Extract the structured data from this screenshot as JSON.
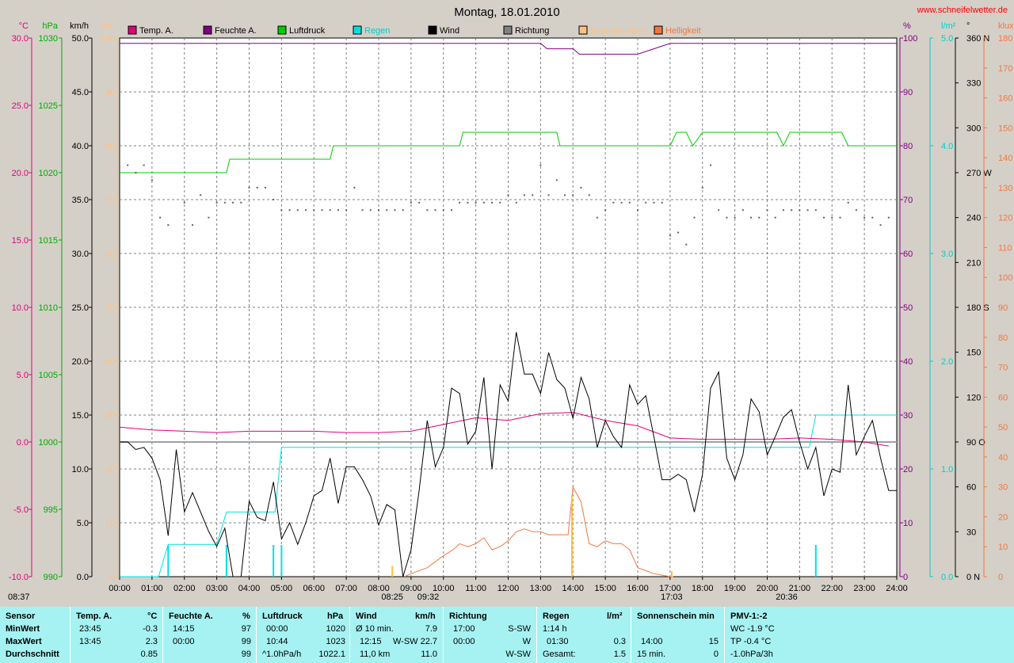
{
  "chart_data": {
    "type": "line",
    "title": "Montag, 18.01.2010",
    "watermark": "www.schneifelwetter.de",
    "legend": [
      {
        "name": "Temp. A.",
        "color": "#e0007a"
      },
      {
        "name": "Feuchte A.",
        "color": "#800080"
      },
      {
        "name": "Luftdruck",
        "color": "#00cc00"
      },
      {
        "name": "Regen",
        "color": "#00e0e0"
      },
      {
        "name": "Wind",
        "color": "#000000"
      },
      {
        "name": "Richtung",
        "color": "#808080"
      },
      {
        "name": "Sonnenschein",
        "color": "#ffc080"
      },
      {
        "name": "Helligkeit",
        "color": "#f07840"
      }
    ],
    "axes_left": [
      {
        "unit": "°C",
        "color": "#e0007a",
        "ticks": [
          "30.0",
          "25.0",
          "20.0",
          "15.0",
          "10.0",
          "5.0",
          "0.0",
          "-5.0",
          "-10.0"
        ]
      },
      {
        "unit": "hPa",
        "color": "#00aa00",
        "ticks": [
          "1030",
          "1025",
          "1020",
          "1015",
          "1010",
          "1005",
          "1000",
          "995",
          "990"
        ]
      },
      {
        "unit": "km/h",
        "color": "#000000",
        "ticks": [
          "50.0",
          "45.0",
          "40.0",
          "35.0",
          "30.0",
          "25.0",
          "20.0",
          "15.0",
          "10.0",
          "5.0",
          "0.0"
        ]
      },
      {
        "unit": "min",
        "color": "#ffc080",
        "ticks": [
          "100",
          "90",
          "80",
          "70",
          "60",
          "50",
          "40",
          "30",
          "20",
          "10",
          "0"
        ]
      }
    ],
    "axes_right": [
      {
        "unit": "%",
        "color": "#800080",
        "ticks": [
          "100",
          "90",
          "80",
          "70",
          "60",
          "50",
          "40",
          "30",
          "20",
          "10",
          "0"
        ]
      },
      {
        "unit": "l/m²",
        "color": "#00cccc",
        "ticks": [
          "5.0",
          "4.0",
          "3.0",
          "2.0",
          "1.0",
          "0.0"
        ]
      },
      {
        "unit": "°",
        "color": "#000000",
        "ticks": [
          "360 N",
          "330",
          "300",
          "270 W",
          "240",
          "210",
          "180 S",
          "150",
          "120",
          "90 O",
          "60",
          "30",
          "0 N"
        ]
      },
      {
        "unit": "klux",
        "color": "#f07840",
        "ticks": [
          "180",
          "170",
          "160",
          "150",
          "140",
          "130",
          "120",
          "110",
          "100",
          "90",
          "80",
          "70",
          "60",
          "50",
          "40",
          "30",
          "20",
          "10",
          "0"
        ]
      }
    ],
    "x_ticks": [
      "00:00",
      "01:00",
      "02:00",
      "03:00",
      "04:00",
      "05:00",
      "06:00",
      "07:00",
      "08:00",
      "09:00",
      "10:00",
      "11:00",
      "12:00",
      "13:00",
      "14:00",
      "15:00",
      "16:00",
      "17:00",
      "18:00",
      "19:00",
      "20:00",
      "21:00",
      "22:00",
      "23:00",
      "24:00"
    ],
    "sun_labels": [
      {
        "label": "08:25",
        "t": 8.42
      },
      {
        "label": "09:32",
        "t": 9.53
      },
      {
        "label": "17:03",
        "t": 17.05
      },
      {
        "label": "20:36",
        "t": 20.6
      },
      {
        "label": "08:37",
        "t": 0
      }
    ],
    "series": [
      {
        "name": "Temp. A.",
        "axis": "°C",
        "x": [
          0,
          1,
          2,
          3,
          4,
          5,
          6,
          7,
          8,
          9,
          10,
          11,
          12,
          13,
          14,
          15,
          16,
          17,
          18,
          19,
          20,
          21,
          22,
          23,
          23.75
        ],
        "y": [
          1.1,
          0.9,
          0.8,
          0.7,
          0.8,
          0.8,
          0.8,
          0.7,
          0.7,
          0.8,
          1.3,
          1.8,
          1.6,
          2.1,
          2.2,
          1.6,
          1.2,
          0.3,
          0.2,
          0.2,
          0.2,
          0.3,
          0.2,
          0.0,
          -0.3
        ]
      },
      {
        "name": "Feuchte A.",
        "axis": "%",
        "x": [
          0,
          13.0,
          13.2,
          14.0,
          14.2,
          15.5,
          16.0,
          16.5,
          17.0,
          24
        ],
        "y": [
          99,
          99,
          98,
          98,
          97,
          97,
          97,
          98,
          99,
          99
        ]
      },
      {
        "name": "Luftdruck",
        "axis": "hPa",
        "x": [
          0,
          3.3,
          3.4,
          6.5,
          6.6,
          10.5,
          10.6,
          13.5,
          13.6,
          17.0,
          17.2,
          17.5,
          17.7,
          18.0,
          20.3,
          20.5,
          20.7,
          22.3,
          22.5,
          24
        ],
        "y": [
          1020,
          1020,
          1021,
          1021,
          1022,
          1022,
          1023,
          1023,
          1022,
          1022,
          1023,
          1023,
          1022,
          1023,
          1023,
          1022,
          1023,
          1023,
          1022,
          1022
        ]
      },
      {
        "name": "Regen",
        "axis": "l/m²",
        "x": [
          0,
          1.2,
          1.5,
          3.0,
          3.3,
          4.8,
          5.0,
          21.3,
          21.5,
          24
        ],
        "y": [
          0,
          0,
          0.3,
          0.3,
          0.6,
          0.6,
          1.2,
          1.2,
          1.5,
          1.5
        ]
      },
      {
        "name": "Wind",
        "axis": "km/h",
        "x": [
          0,
          0.25,
          0.5,
          0.75,
          1.0,
          1.25,
          1.5,
          1.75,
          2.0,
          2.25,
          2.5,
          2.75,
          3.0,
          3.25,
          3.5,
          3.75,
          4.0,
          4.25,
          4.5,
          4.75,
          5.0,
          5.25,
          5.5,
          5.75,
          6.0,
          6.25,
          6.5,
          6.75,
          7.0,
          7.25,
          7.5,
          7.75,
          8.0,
          8.25,
          8.5,
          8.75,
          9.0,
          9.25,
          9.5,
          9.75,
          10.0,
          10.25,
          10.5,
          10.75,
          11.0,
          11.25,
          11.5,
          11.75,
          12.0,
          12.25,
          12.5,
          12.75,
          13.0,
          13.25,
          13.5,
          13.75,
          14.0,
          14.25,
          14.5,
          14.75,
          15.0,
          15.25,
          15.5,
          15.75,
          16.0,
          16.25,
          16.5,
          16.75,
          17.0,
          17.25,
          17.5,
          17.75,
          18.0,
          18.25,
          18.5,
          18.75,
          19.0,
          19.25,
          19.5,
          19.75,
          20.0,
          20.25,
          20.5,
          20.75,
          21.0,
          21.25,
          21.5,
          21.75,
          22.0,
          22.25,
          22.5,
          22.75,
          23.0,
          23.25,
          23.5,
          23.75,
          24.0
        ],
        "y": [
          12.5,
          12.5,
          11.8,
          12.0,
          11.0,
          9.0,
          3.8,
          11.8,
          6.0,
          7.8,
          6.0,
          4.2,
          2.8,
          4.5,
          0.0,
          0.0,
          7.0,
          5.5,
          5.2,
          8.8,
          3.5,
          5.0,
          3.0,
          5.0,
          7.5,
          8.0,
          11.0,
          6.8,
          10.2,
          10.2,
          9.0,
          7.5,
          4.8,
          6.7,
          6.2,
          0.0,
          2.5,
          8.0,
          14.5,
          10.2,
          12.0,
          17.5,
          17.0,
          12.3,
          13.5,
          18.5,
          10.0,
          17.8,
          16.3,
          22.7,
          18.8,
          18.8,
          17.0,
          20.8,
          18.3,
          17.5,
          14.7,
          18.5,
          16.5,
          12.0,
          14.5,
          13.0,
          12.0,
          17.8,
          16.0,
          16.8,
          13.0,
          9.0,
          9.0,
          9.5,
          9.0,
          6.0,
          9.5,
          17.5,
          19.0,
          11.0,
          9.0,
          11.3,
          16.5,
          15.3,
          11.3,
          13.0,
          14.8,
          15.5,
          12.5,
          10.0,
          12.0,
          7.5,
          10.0,
          9.7,
          17.8,
          11.3,
          13.0,
          14.5,
          11.0,
          8.0,
          8.0
        ]
      },
      {
        "name": "Helligkeit",
        "axis": "klux",
        "x": [
          8.8,
          9.0,
          9.5,
          10.0,
          10.3,
          10.5,
          10.75,
          11.0,
          11.25,
          11.5,
          11.75,
          12.0,
          12.25,
          12.5,
          12.75,
          13.0,
          13.25,
          13.5,
          13.75,
          13.85,
          14.0,
          14.25,
          14.5,
          14.75,
          15.0,
          15.25,
          15.5,
          15.75,
          16.0,
          16.25,
          16.5,
          16.75,
          17.0,
          17.1
        ],
        "y": [
          0,
          1,
          3,
          7,
          9,
          11,
          10,
          11,
          13,
          9,
          10,
          12,
          15,
          16,
          15,
          15,
          14,
          14,
          14,
          14,
          30,
          25,
          11,
          10,
          12,
          11,
          11,
          9,
          3,
          2,
          1,
          0.5,
          0,
          0
        ]
      },
      {
        "name": "Sonnenschein",
        "axis": "min",
        "x": [
          8.42,
          13.97,
          17.05
        ],
        "y": [
          2,
          15,
          1
        ]
      },
      {
        "name": "Richtung",
        "axis": "°",
        "x": [
          0.25,
          0.5,
          0.75,
          1.0,
          1.25,
          1.5,
          2.0,
          2.25,
          2.5,
          2.75,
          3.0,
          3.25,
          3.5,
          3.75,
          4.0,
          4.25,
          4.5,
          4.75,
          5.0,
          5.25,
          5.5,
          5.75,
          6.0,
          6.25,
          6.5,
          6.75,
          7.0,
          7.25,
          7.5,
          7.75,
          8.0,
          8.25,
          8.5,
          8.75,
          9.0,
          9.25,
          9.5,
          9.75,
          10.0,
          10.25,
          10.5,
          10.75,
          11.0,
          11.25,
          11.5,
          11.75,
          12.0,
          12.25,
          12.5,
          12.75,
          13.0,
          13.25,
          13.5,
          13.75,
          14.0,
          14.25,
          14.5,
          14.75,
          15.0,
          15.25,
          15.5,
          15.75,
          16.0,
          16.25,
          16.5,
          16.75,
          17.0,
          17.25,
          17.5,
          17.75,
          18.0,
          18.25,
          18.5,
          18.75,
          19.0,
          19.25,
          19.5,
          19.75,
          20.0,
          20.25,
          20.5,
          20.75,
          21.0,
          21.25,
          21.5,
          21.75,
          22.0,
          22.25,
          22.5,
          22.75,
          23.0,
          23.25,
          23.5,
          23.75
        ],
        "y": [
          275,
          270,
          275,
          265,
          240,
          235,
          250,
          235,
          255,
          240,
          250,
          250,
          250,
          250,
          260,
          260,
          260,
          252,
          245,
          245,
          245,
          245,
          245,
          245,
          245,
          245,
          245,
          260,
          245,
          245,
          245,
          245,
          245,
          245,
          250,
          250,
          245,
          245,
          245,
          245,
          250,
          250,
          250,
          250,
          250,
          250,
          255,
          250,
          255,
          255,
          275,
          255,
          265,
          255,
          255,
          260,
          255,
          240,
          245,
          250,
          250,
          250,
          245,
          250,
          250,
          250,
          228,
          230,
          222,
          240,
          260,
          275,
          245,
          240,
          240,
          245,
          240,
          240,
          245,
          240,
          245,
          245,
          245,
          245,
          245,
          240,
          240,
          240,
          250,
          245,
          240,
          240,
          235,
          240
        ]
      }
    ]
  },
  "table": {
    "header": {
      "sensor": "Sensor",
      "temp": "Temp. A.",
      "temp_unit": "°C",
      "hum": "Feuchte A.",
      "hum_unit": "%",
      "press": "Luftdruck",
      "press_unit": "hPa",
      "wind": "Wind",
      "wind_unit": "km/h",
      "dir": "Richtung",
      "rain": "Regen",
      "rain_unit": "l/m²",
      "sun": "Sonnenschein min",
      "pmv": "PMV-1:-2"
    },
    "rows": [
      {
        "label": "MinWert",
        "temp_time": "23:45",
        "temp_val": "-0.3",
        "hum_time": "14:15",
        "hum_val": "97",
        "press_time": "00:00",
        "press_val": "1020",
        "wind_time": "Ø 10 min.",
        "wind_val": "7.9",
        "dir_time": "17:00",
        "dir_val": "S-SW",
        "rain_time": "1:14 h",
        "rain_val": "",
        "sun_time": "",
        "sun_val": "",
        "pmv": "WC -1.9 °C"
      },
      {
        "label": "MaxWert",
        "temp_time": "13:45",
        "temp_val": "2.3",
        "hum_time": "00:00",
        "hum_val": "99",
        "press_time": "10:44",
        "press_val": "1023",
        "wind_time": "12:15",
        "wind_dir": "W-SW",
        "wind_val": "22.7",
        "dir_time": "00:00",
        "dir_val": "W",
        "rain_time": "01:30",
        "rain_val": "0.3",
        "sun_time": "14:00",
        "sun_val": "15",
        "pmv": "TP -0.4 °C"
      },
      {
        "label": "Durchschnitt",
        "temp_time": "",
        "temp_val": "0.85",
        "hum_time": "",
        "hum_val": "99",
        "press_time": "^1.0hPa/h",
        "press_val": "1022.1",
        "wind_time": "11,0 km",
        "wind_val": "11.0",
        "dir_time": "",
        "dir_val": "W-SW",
        "rain_time": "Gesamt:",
        "rain_val": "1.5",
        "sun_time": "15 min.",
        "sun_val": "0",
        "pmv": "-1.0hPa/3h"
      }
    ]
  }
}
